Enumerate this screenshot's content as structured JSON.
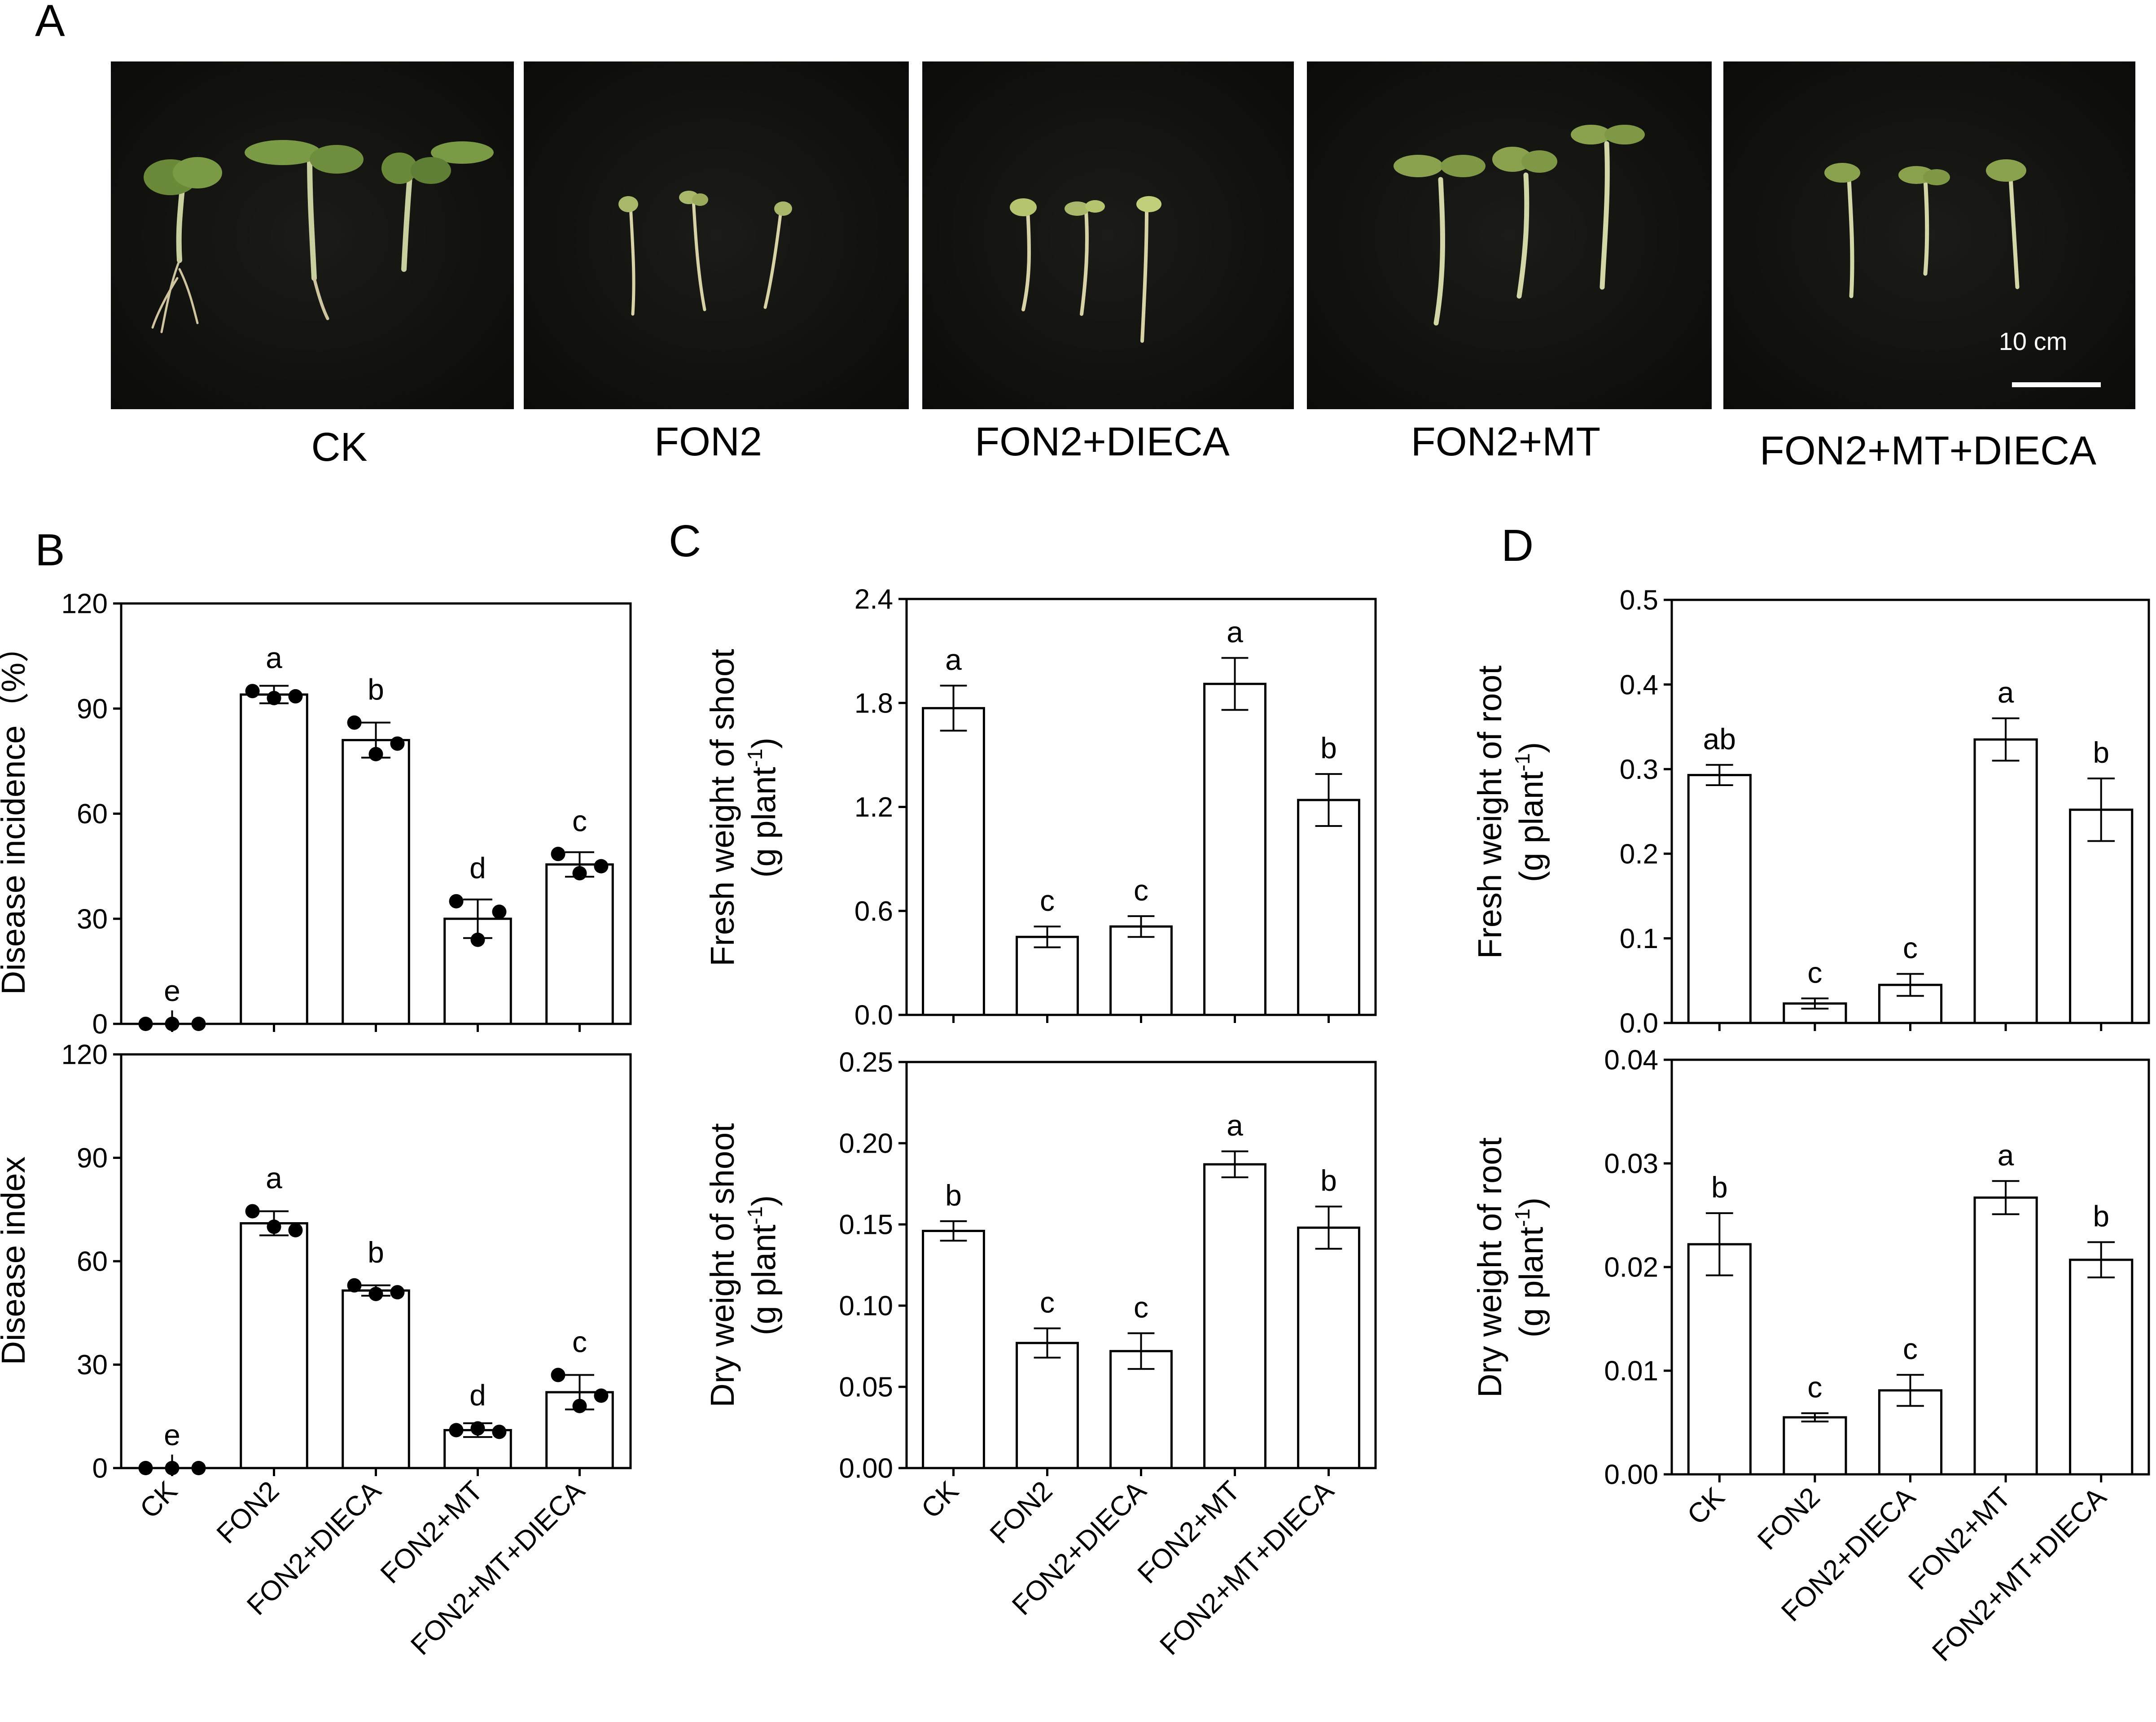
{
  "panel_labels": [
    "A",
    "B",
    "C",
    "D"
  ],
  "photos": {
    "panels": [
      "CK",
      "FON2",
      "FON2+DIECA",
      "FON2+MT",
      "FON2+MT+DIECA"
    ],
    "scale_bar_label": "10 cm"
  },
  "chart_data": [
    {
      "id": "disease-incidence",
      "type": "bar",
      "panel": "B",
      "categories": [
        "CK",
        "FON2",
        "FON2+DIECA",
        "FON2+MT",
        "FON2+MT+DIECA"
      ],
      "values": [
        0,
        94,
        81,
        30,
        45.5
      ],
      "errors": [
        0,
        2.5,
        5,
        5.5,
        3.5
      ],
      "letters": [
        "e",
        "a",
        "b",
        "d",
        "c"
      ],
      "points": [
        [
          0,
          0,
          0
        ],
        [
          95,
          93,
          93.5
        ],
        [
          86,
          77,
          80
        ],
        [
          35,
          24,
          32
        ],
        [
          48.5,
          43,
          45
        ]
      ],
      "ylabel": "Disease incidence（%）",
      "ylim": [
        0,
        120
      ],
      "yticks": [
        "0",
        "30",
        "60",
        "90",
        "120"
      ]
    },
    {
      "id": "disease-index",
      "type": "bar",
      "panel": "B",
      "categories": [
        "CK",
        "FON2",
        "FON2+DIECA",
        "FON2+MT",
        "FON2+MT+DIECA"
      ],
      "values": [
        0,
        71,
        51.5,
        11,
        22
      ],
      "errors": [
        0,
        3.5,
        1.5,
        2,
        5
      ],
      "letters": [
        "e",
        "a",
        "b",
        "d",
        "c"
      ],
      "points": [
        [
          0,
          0,
          0
        ],
        [
          74.5,
          70,
          69
        ],
        [
          53,
          50.5,
          51
        ],
        [
          11,
          11.5,
          10.5
        ],
        [
          27,
          18,
          21
        ]
      ],
      "ylabel": "Disease index",
      "ylim": [
        0,
        120
      ],
      "yticks": [
        "0",
        "30",
        "60",
        "90",
        "120"
      ],
      "tick_labels_shown": true
    },
    {
      "id": "fresh-weight-shoot",
      "type": "bar",
      "panel": "C",
      "categories": [
        "CK",
        "FON2",
        "FON2+DIECA",
        "FON2+MT",
        "FON2+MT+DIECA"
      ],
      "values": [
        1.77,
        0.45,
        0.51,
        1.91,
        1.24
      ],
      "errors": [
        0.13,
        0.06,
        0.06,
        0.15,
        0.15
      ],
      "letters": [
        "a",
        "c",
        "c",
        "a",
        "b"
      ],
      "ylabel_line1": "Fresh weight of shoot",
      "ylabel_line2": "(g plant",
      "ylabel_sup": "-1",
      "ylabel_end": ")",
      "ylim": [
        0,
        2.4
      ],
      "yticks": [
        "0.0",
        "0.6",
        "1.2",
        "1.8",
        "2.4"
      ]
    },
    {
      "id": "dry-weight-shoot",
      "type": "bar",
      "panel": "C",
      "categories": [
        "CK",
        "FON2",
        "FON2+DIECA",
        "FON2+MT",
        "FON2+MT+DIECA"
      ],
      "values": [
        0.146,
        0.077,
        0.072,
        0.187,
        0.148
      ],
      "errors": [
        0.006,
        0.009,
        0.011,
        0.008,
        0.013
      ],
      "letters": [
        "b",
        "c",
        "c",
        "a",
        "b"
      ],
      "ylabel_line1": "Dry weight of shoot",
      "ylabel_line2": "(g plant",
      "ylabel_sup": "-1",
      "ylabel_end": ")",
      "ylim": [
        0,
        0.25
      ],
      "yticks": [
        "0.00",
        "0.05",
        "0.10",
        "0.15",
        "0.20",
        "0.25"
      ],
      "tick_labels_shown": true
    },
    {
      "id": "fresh-weight-root",
      "type": "bar",
      "panel": "D",
      "categories": [
        "CK",
        "FON2",
        "FON2+DIECA",
        "FON2+MT",
        "FON2+MT+DIECA"
      ],
      "values": [
        0.293,
        0.023,
        0.045,
        0.335,
        0.252
      ],
      "errors": [
        0.012,
        0.006,
        0.013,
        0.025,
        0.037
      ],
      "letters": [
        "ab",
        "c",
        "c",
        "a",
        "b"
      ],
      "ylabel_line1": "Fresh weight of root",
      "ylabel_line2": "(g plant",
      "ylabel_sup": "-1",
      "ylabel_end": ")",
      "ylim": [
        0,
        0.5
      ],
      "yticks": [
        "0.0",
        "0.1",
        "0.2",
        "0.3",
        "0.4",
        "0.5"
      ]
    },
    {
      "id": "dry-weight-root",
      "type": "bar",
      "panel": "D",
      "categories": [
        "CK",
        "FON2",
        "FON2+DIECA",
        "FON2+MT",
        "FON2+MT+DIECA"
      ],
      "values": [
        0.0222,
        0.0055,
        0.0081,
        0.0267,
        0.0207
      ],
      "errors": [
        0.003,
        0.0004,
        0.0015,
        0.0016,
        0.0017
      ],
      "letters": [
        "b",
        "c",
        "c",
        "a",
        "b"
      ],
      "ylabel_line1": "Dry weight of root",
      "ylabel_line2": "(g plant",
      "ylabel_sup": "-1",
      "ylabel_end": ")",
      "ylim": [
        0,
        0.04
      ],
      "yticks": [
        "0.00",
        "0.01",
        "0.02",
        "0.03",
        "0.04"
      ],
      "tick_labels_shown": true
    }
  ]
}
